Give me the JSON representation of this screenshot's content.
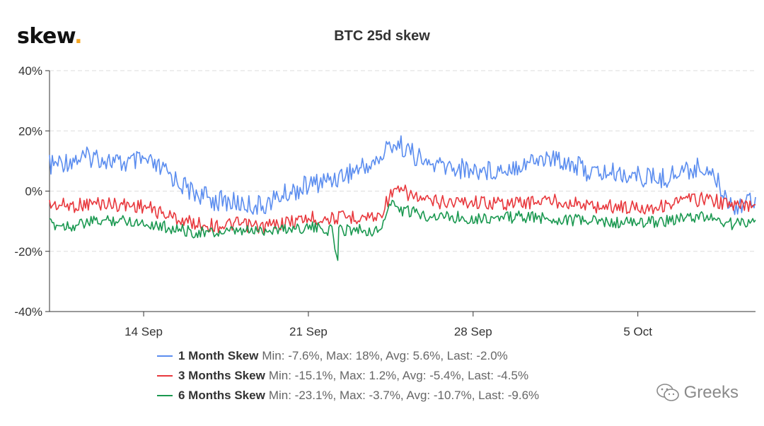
{
  "brand": {
    "name": "skew",
    "dot": "."
  },
  "watermark": {
    "text": "Greeks",
    "icon": "wechat-icon"
  },
  "chart_data": {
    "type": "line",
    "title": "BTC 25d skew",
    "xlabel": "",
    "ylabel": "",
    "x_ticks": [
      "14 Sep",
      "21 Sep",
      "28 Sep",
      "5 Oct"
    ],
    "y_ticks": [
      "40%",
      "20%",
      "0%",
      "-20%",
      "-40%"
    ],
    "ylim": [
      -40,
      40
    ],
    "x_range_days": [
      "2020-09-10",
      "2020-10-10"
    ],
    "grid": true,
    "legend_position": "bottom",
    "series": [
      {
        "name": "1 Month Skew",
        "stats": "Min: -7.6%, Max: 18%, Avg: 5.6%, Last: -2.0%",
        "color": "#5b8def",
        "x": [
          "09-10",
          "09-11",
          "09-12",
          "09-13",
          "09-14",
          "09-15",
          "09-16",
          "09-17",
          "09-18",
          "09-19",
          "09-20",
          "09-21",
          "09-22",
          "09-23",
          "09-24",
          "09-24 12:00",
          "09-25",
          "09-26",
          "09-27",
          "09-28",
          "09-29",
          "09-30",
          "10-01",
          "10-02",
          "10-03",
          "10-04",
          "10-05",
          "10-06",
          "10-07",
          "10-08",
          "10-09",
          "10-10"
        ],
        "y": [
          8.5,
          10.5,
          11.5,
          9,
          10,
          6,
          0,
          -3,
          -4,
          -5,
          -1,
          2,
          4,
          7,
          10,
          16,
          15,
          9,
          8,
          7,
          7,
          9,
          11,
          10,
          6,
          6,
          5,
          4,
          7,
          8,
          -5,
          -2
        ]
      },
      {
        "name": "3 Months Skew",
        "stats": "Min: -15.1%, Max: 1.2%, Avg: -5.4%, Last: -4.5%",
        "color": "#e8383d",
        "x": [
          "09-10",
          "09-11",
          "09-12",
          "09-13",
          "09-14",
          "09-15",
          "09-16",
          "09-17",
          "09-18",
          "09-19",
          "09-20",
          "09-21",
          "09-22",
          "09-23",
          "09-24",
          "09-24 12:00",
          "09-25",
          "09-26",
          "09-27",
          "09-28",
          "09-29",
          "09-30",
          "10-01",
          "10-02",
          "10-03",
          "10-04",
          "10-05",
          "10-06",
          "10-07",
          "10-08",
          "10-09",
          "10-10"
        ],
        "y": [
          -4.5,
          -4.8,
          -4,
          -4.5,
          -5,
          -8,
          -10.5,
          -11.5,
          -11,
          -12,
          -10.5,
          -9,
          -9,
          -8.5,
          -8.5,
          -1,
          0,
          -3.5,
          -3.5,
          -3.5,
          -4,
          -4,
          -3,
          -3.5,
          -5,
          -5,
          -5.5,
          -5,
          -3,
          -2.5,
          -5,
          -4.5
        ]
      },
      {
        "name": "6 Months Skew",
        "stats": "Min: -23.1%, Max: -3.7%, Avg: -10.7%, Last: -9.6%",
        "color": "#1a9850",
        "x": [
          "09-10",
          "09-11",
          "09-12",
          "09-13",
          "09-14",
          "09-15",
          "09-16",
          "09-17",
          "09-18",
          "09-19",
          "09-20",
          "09-21",
          "09-22",
          "09-22 06:00",
          "09-22 07:00",
          "09-23",
          "09-24",
          "09-24 12:00",
          "09-25",
          "09-26",
          "09-27",
          "09-28",
          "09-29",
          "09-30",
          "10-01",
          "10-02",
          "10-03",
          "10-04",
          "10-05",
          "10-06",
          "10-07",
          "10-08",
          "10-09",
          "10-10"
        ],
        "y": [
          -11,
          -11.5,
          -10,
          -9.5,
          -10.5,
          -12,
          -13.5,
          -14,
          -13.5,
          -13,
          -12.5,
          -12,
          -13,
          -23,
          -13,
          -12.5,
          -13.5,
          -4,
          -6.5,
          -8,
          -8.5,
          -9,
          -9,
          -8.5,
          -9,
          -9.5,
          -10,
          -10.5,
          -10.5,
          -10,
          -9,
          -8.5,
          -11,
          -9.6
        ]
      }
    ]
  }
}
